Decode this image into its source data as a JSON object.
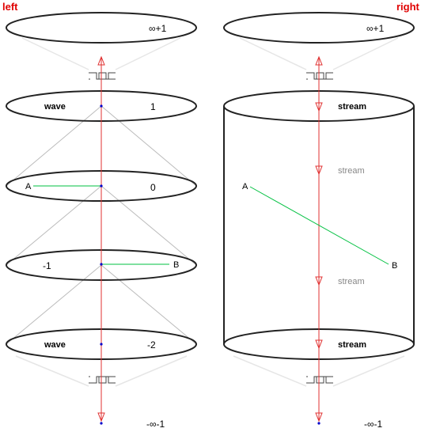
{
  "colors": {
    "axis": "#e03030",
    "path": "#00c040",
    "cone": "#bbbbbb",
    "labels": "#e00000",
    "point": "#0000cc"
  },
  "left": {
    "title": "left",
    "top_label": "∞+1",
    "levels": [
      {
        "name": "wave",
        "value": "1"
      },
      {
        "name": "",
        "value": "0"
      },
      {
        "name": "",
        "value": "-1"
      },
      {
        "name": "wave",
        "value": "-2"
      }
    ],
    "point_a": "A",
    "point_b": "B",
    "bottom_label": "-∞-1"
  },
  "right": {
    "title": "right",
    "top_label": "∞+1",
    "stream_top": "stream",
    "stream_mid1": "stream",
    "stream_mid2": "stream",
    "stream_bottom": "stream",
    "point_a": "A",
    "point_b": "B",
    "bottom_label": "-∞-1"
  }
}
